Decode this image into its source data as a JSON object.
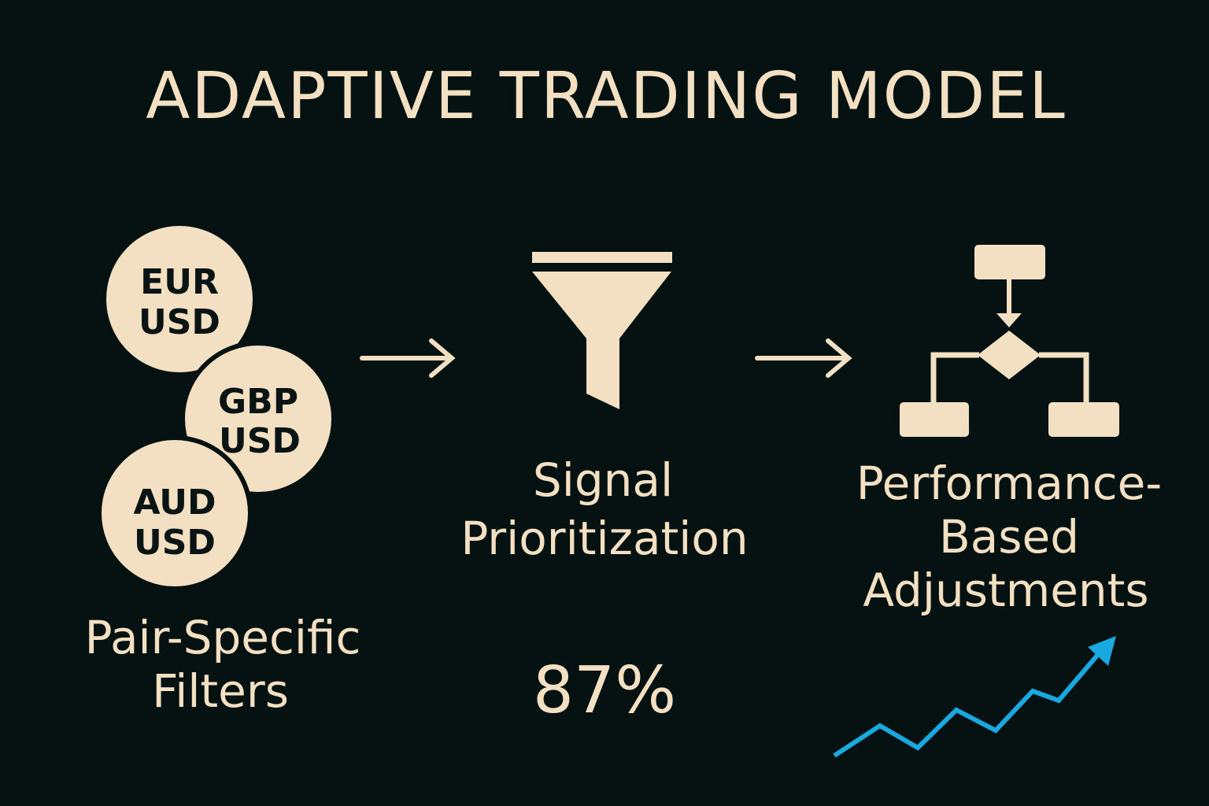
{
  "header": {
    "title": "ADAPTIVE TRADING MODEL"
  },
  "pairs": [
    {
      "lines": [
        "EUR",
        "USD"
      ]
    },
    {
      "lines": [
        "GBP",
        "USD"
      ]
    },
    {
      "lines": [
        "AUD",
        "USD"
      ]
    }
  ],
  "steps": [
    {
      "label_lines": [
        "Pair-Specific",
        "Filters"
      ]
    },
    {
      "label_lines": [
        "Signal",
        "Prioritization"
      ],
      "metric": "87%"
    },
    {
      "label_lines": [
        "Performance-",
        "Based",
        "Adjustments"
      ]
    }
  ]
}
